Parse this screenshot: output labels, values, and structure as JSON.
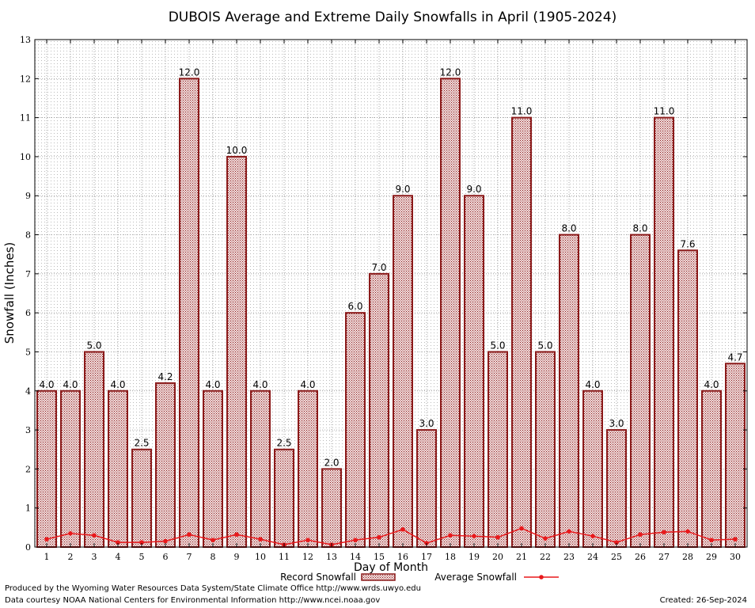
{
  "chart_data": {
    "type": "bar",
    "title": "DUBOIS Average and Extreme Daily Snowfalls in April (1905-2024)",
    "xlabel": "Day of Month",
    "ylabel": "Snowfall (Inches)",
    "ylim": [
      0,
      13
    ],
    "yticks": [
      "0",
      "1",
      "2",
      "3",
      "4",
      "5",
      "6",
      "7",
      "8",
      "9",
      "10",
      "11",
      "12",
      "13"
    ],
    "categories": [
      "1",
      "2",
      "3",
      "4",
      "5",
      "6",
      "7",
      "8",
      "9",
      "10",
      "11",
      "12",
      "13",
      "14",
      "15",
      "16",
      "17",
      "18",
      "19",
      "20",
      "21",
      "22",
      "23",
      "24",
      "25",
      "26",
      "27",
      "28",
      "29",
      "30"
    ],
    "series": [
      {
        "name": "Record Snowfall",
        "kind": "bar",
        "color": "#8b1a1a",
        "values": [
          4.0,
          4.0,
          5.0,
          4.0,
          2.5,
          4.2,
          12.0,
          4.0,
          10.0,
          4.0,
          2.5,
          4.0,
          2.0,
          6.0,
          7.0,
          9.0,
          3.0,
          12.0,
          9.0,
          5.0,
          11.0,
          5.0,
          8.0,
          4.0,
          3.0,
          8.0,
          11.0,
          7.6,
          4.0,
          4.7
        ],
        "labels": [
          "4.0",
          "4.0",
          "5.0",
          "4.0",
          "2.5",
          "4.2",
          "12.0",
          "4.0",
          "10.0",
          "4.0",
          "2.5",
          "4.0",
          "2.0",
          "6.0",
          "7.0",
          "9.0",
          "3.0",
          "12.0",
          "9.0",
          "5.0",
          "11.0",
          "5.0",
          "8.0",
          "4.0",
          "3.0",
          "8.0",
          "11.0",
          "7.6",
          "4.0",
          "4.7"
        ]
      },
      {
        "name": "Average Snowfall",
        "kind": "line",
        "color": "#e8191c",
        "values": [
          0.2,
          0.35,
          0.3,
          0.12,
          0.12,
          0.15,
          0.32,
          0.18,
          0.32,
          0.2,
          0.06,
          0.18,
          0.06,
          0.18,
          0.25,
          0.45,
          0.1,
          0.3,
          0.28,
          0.25,
          0.48,
          0.22,
          0.4,
          0.28,
          0.12,
          0.32,
          0.38,
          0.4,
          0.18,
          0.2
        ]
      }
    ],
    "grid": true,
    "legend": "bottom-center"
  },
  "footer": {
    "produced_by": "Produced by the Wyoming Water Resources Data System/State Climate Office http://www.wrds.uwyo.edu",
    "data_courtesy": "Data courtesy NOAA National Centers for Environmental Information http://www.ncei.noaa.gov",
    "created": "Created:  26-Sep-2024"
  }
}
